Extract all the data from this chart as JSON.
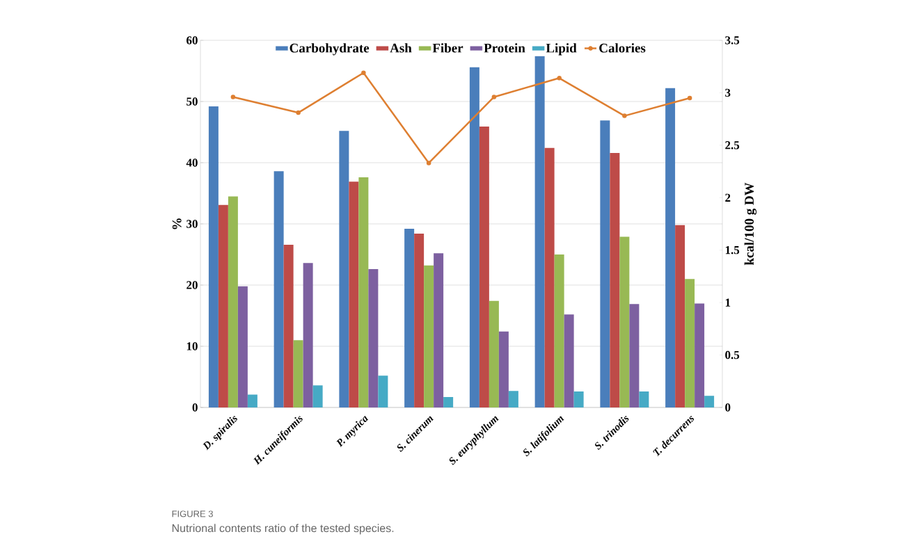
{
  "chart_data": {
    "type": "bar",
    "categories": [
      "D. spiralis",
      "H. cuneiformis",
      "P. myrica",
      "S. cinerum",
      "S. euryphyllum",
      "S. latifolium",
      "S. trinodis",
      "T. decurrens"
    ],
    "series": [
      {
        "name": "Carbohydrate",
        "color": "#4a7ebb",
        "values": [
          49.2,
          38.6,
          45.2,
          29.2,
          55.6,
          57.4,
          46.9,
          52.2
        ]
      },
      {
        "name": "Ash",
        "color": "#be4b48",
        "values": [
          33.1,
          26.6,
          36.9,
          28.4,
          45.9,
          42.4,
          41.6,
          29.8
        ]
      },
      {
        "name": "Fiber",
        "color": "#98b954",
        "values": [
          34.5,
          11.0,
          37.6,
          23.2,
          17.4,
          25.0,
          27.9,
          21.0
        ]
      },
      {
        "name": "Protein",
        "color": "#7d60a0",
        "values": [
          19.8,
          23.6,
          22.6,
          25.2,
          12.4,
          15.2,
          16.9,
          17.0
        ]
      },
      {
        "name": "Lipid",
        "color": "#46aac5",
        "values": [
          2.1,
          3.6,
          5.2,
          1.7,
          2.7,
          2.6,
          2.6,
          1.9
        ]
      },
      {
        "name": "Calories",
        "color": "#de7f31",
        "type": "line",
        "axis": "y2",
        "marker": "circle",
        "values": [
          2.96,
          2.81,
          3.19,
          2.33,
          2.96,
          3.14,
          2.78,
          2.95
        ]
      }
    ],
    "ylabel": "%",
    "y2label": "kcal/100 g DW",
    "ylim": [
      0,
      60
    ],
    "yticks": [
      0,
      10,
      20,
      30,
      40,
      50,
      60
    ],
    "y2lim": [
      0,
      3.5
    ],
    "y2ticks": [
      0,
      0.5,
      1,
      1.5,
      2,
      2.5,
      3,
      3.5
    ],
    "grid": "y",
    "legend": "top",
    "annotations": [
      "FIGURE 3",
      "Nutrional contents ratio of the tested species."
    ]
  }
}
